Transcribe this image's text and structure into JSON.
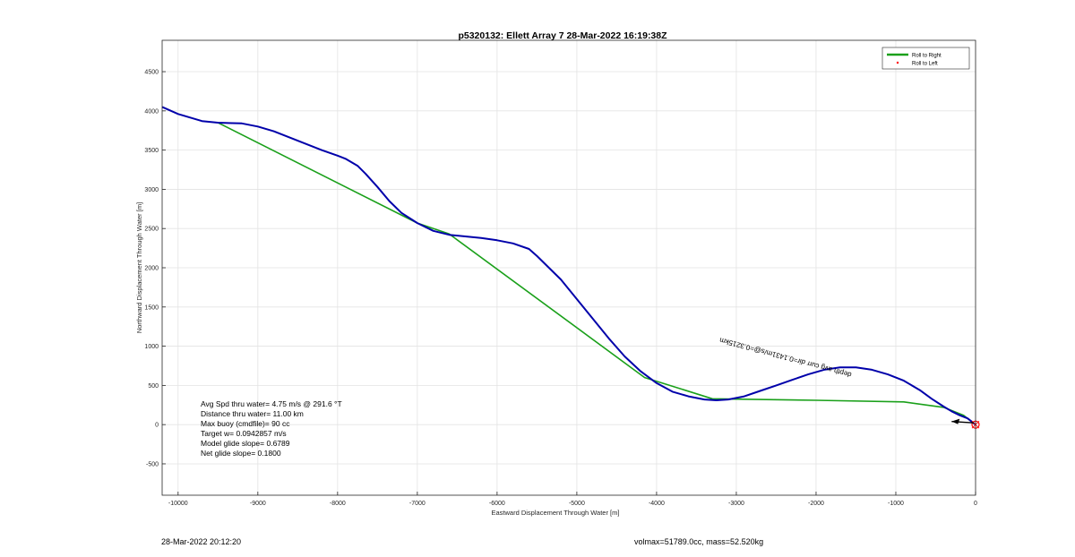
{
  "footer": {
    "timestamp": "28-Mar-2022 20:12:20",
    "info": "volmax=51789.0cc, mass=52.520kg"
  },
  "stats": [
    "Avg Spd thru water=  4.75 m/s @ 291.6 °T",
    "Distance thru water= 11.00 km",
    "Max buoy (cmdfile)= 90 cc",
    "Target w= 0.0942857 m/s",
    "Model glide slope= 0.6789",
    "Net glide slope= 0.1800"
  ],
  "annotation": {
    "text": "depth avg curr dir=0.1431m/s@=0.3215km",
    "color": "#000000"
  },
  "chart_data": {
    "type": "line",
    "title": "p5320132: Ellett Array 7 28-Mar-2022 16:19:38Z",
    "xlabel": "Eastward Displacement Through Water [m]",
    "ylabel": "Northward Displacement Through Water [m]",
    "xlim": [
      -10200,
      0
    ],
    "ylim": [
      -900,
      4900
    ],
    "xticks": [
      -10000,
      -9000,
      -8000,
      -7000,
      -6000,
      -5000,
      -4000,
      -3000,
      -2000,
      -1000,
      0
    ],
    "yticks": [
      -500,
      0,
      500,
      1000,
      1500,
      2000,
      2500,
      3000,
      3500,
      4000,
      4500
    ],
    "grid": true,
    "legend_position": "top-right",
    "legend": [
      {
        "label": "Roll to Right",
        "color": "#1aa01a",
        "style": "line"
      },
      {
        "label": "Roll to Left",
        "color": "#ff0000",
        "style": "marker"
      }
    ],
    "series": [
      {
        "color": "#0000aa",
        "x": [
          -10200,
          -10000,
          -9800,
          -9700,
          -9500,
          -9200,
          -9000,
          -8800,
          -8600,
          -8400,
          -8200,
          -8000,
          -7900,
          -7750,
          -7650,
          -7500,
          -7350,
          -7200,
          -7000,
          -6800,
          -6600,
          -6400,
          -6200,
          -6000,
          -5800,
          -5600,
          -5500,
          -5400,
          -5200,
          -5000,
          -4800,
          -4600,
          -4400,
          -4200,
          -4000,
          -3800,
          -3600,
          -3400,
          -3250,
          -3100,
          -2900,
          -2700,
          -2500,
          -2300,
          -2100,
          -1900,
          -1700,
          -1500,
          -1300,
          -1100,
          -900,
          -700,
          -550,
          -400,
          -300,
          -200,
          -100,
          0
        ],
        "y": [
          4050,
          3960,
          3900,
          3870,
          3850,
          3840,
          3800,
          3740,
          3660,
          3580,
          3500,
          3430,
          3390,
          3300,
          3200,
          3030,
          2850,
          2700,
          2570,
          2470,
          2420,
          2400,
          2380,
          2350,
          2310,
          2240,
          2150,
          2050,
          1850,
          1600,
          1350,
          1100,
          870,
          680,
          530,
          420,
          360,
          320,
          310,
          320,
          360,
          430,
          500,
          570,
          640,
          700,
          730,
          730,
          700,
          640,
          560,
          440,
          330,
          230,
          170,
          120,
          80,
          0
        ]
      },
      {
        "color": "#1aa01a",
        "x": [
          -9500,
          -7000,
          -6600,
          -4150,
          -3300,
          -2000,
          -900,
          -400,
          -150,
          0
        ],
        "y": [
          3850,
          2570,
          2430,
          600,
          330,
          310,
          290,
          220,
          120,
          0
        ]
      }
    ]
  }
}
